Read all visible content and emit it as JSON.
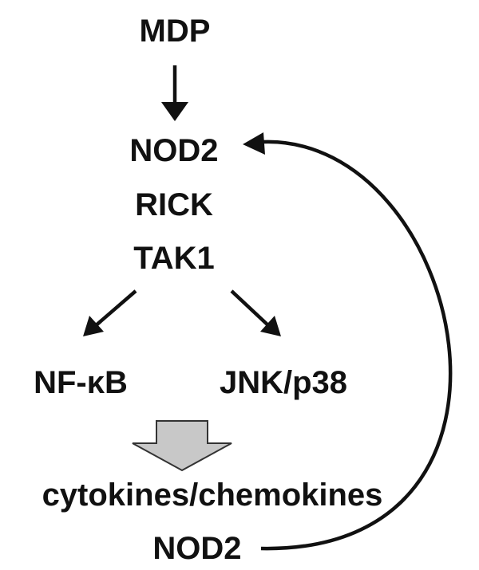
{
  "colors": {
    "ink": "#111111",
    "block_arrow_fill": "#c8c8c8",
    "block_arrow_stroke": "#333333"
  },
  "nodes": {
    "mdp": "MDP",
    "nod2_top": "NOD2",
    "rick": "RICK",
    "tak1": "TAK1",
    "nfkb_prefix": "NF-",
    "nfkb_kappa": "κ",
    "nfkb_suffix": "B",
    "jnk_p38": "JNK/p38",
    "cytokines": "cytokines/chemokines",
    "nod2_bottom": "NOD2"
  },
  "edges": [
    {
      "from": "MDP",
      "to": "NOD2"
    },
    {
      "from": "TAK1",
      "to": "NF-κB"
    },
    {
      "from": "TAK1",
      "to": "JNK/p38"
    },
    {
      "from": "NF-κB / JNK/p38",
      "to": "cytokines/chemokines"
    },
    {
      "from": "NOD2 (bottom)",
      "to": "NOD2 (top)"
    }
  ]
}
